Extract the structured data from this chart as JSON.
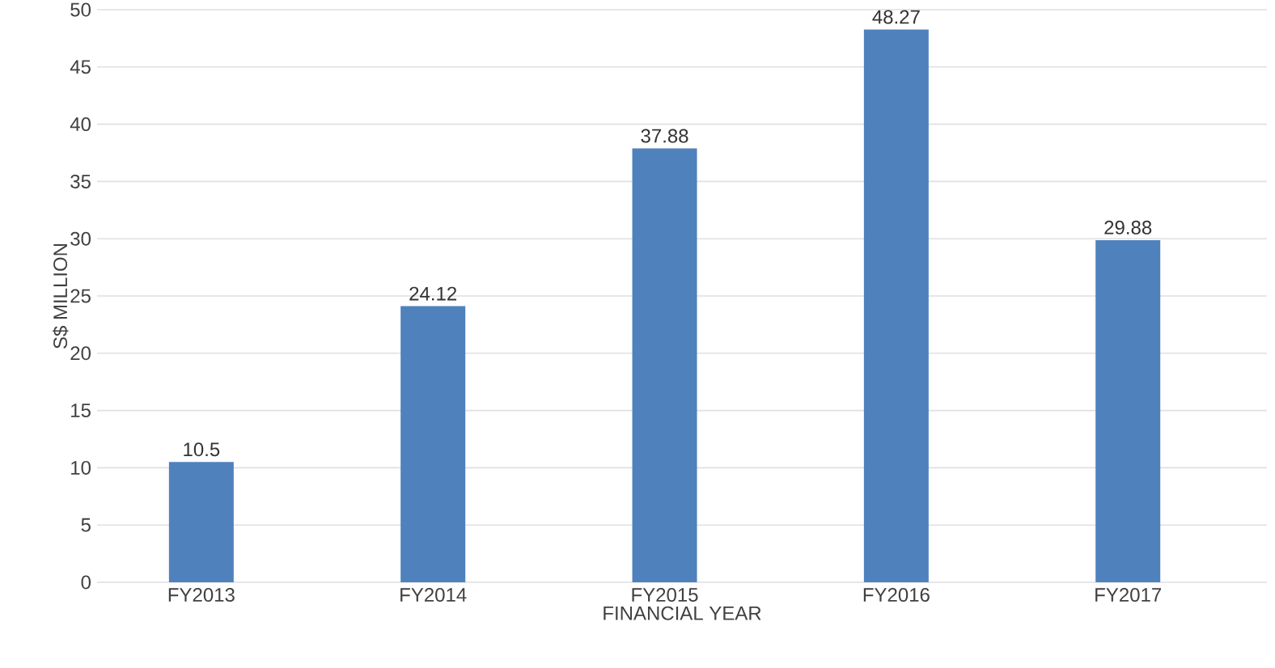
{
  "chart_data": {
    "type": "bar",
    "xlabel": "FINANCIAL YEAR",
    "ylabel": "S$ MILLION",
    "categories": [
      "FY2013",
      "FY2014",
      "FY2015",
      "FY2016",
      "FY2017"
    ],
    "values": [
      10.5,
      24.12,
      37.88,
      48.27,
      29.88
    ],
    "color": "#4f81bd",
    "ylim": [
      0,
      50
    ],
    "yticks": [
      0,
      5,
      10,
      15,
      20,
      25,
      30,
      35,
      40,
      45,
      50
    ],
    "grid": "y",
    "data_labels": true
  }
}
